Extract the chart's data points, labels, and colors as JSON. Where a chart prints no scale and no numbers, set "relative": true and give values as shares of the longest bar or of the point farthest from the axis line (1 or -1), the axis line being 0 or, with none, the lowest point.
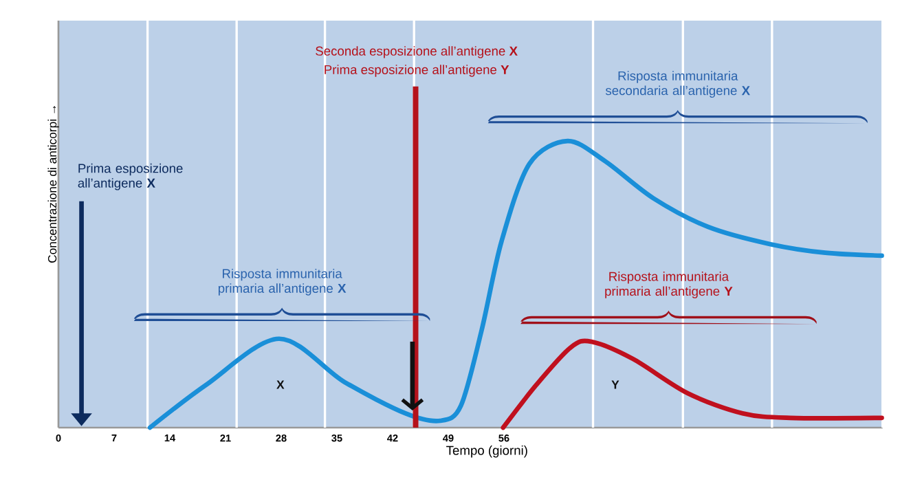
{
  "chart_data": {
    "type": "line",
    "relative": true,
    "xlabel": "Tempo (giorni)",
    "ylabel": "Concentrazione di anticorpi →",
    "xlim": [
      0,
      103.6
    ],
    "xticks": [
      0,
      7,
      14,
      21,
      28,
      35,
      42,
      49,
      56,
      {
        "value": 11.2,
        "label": null
      },
      {
        "value": 22.4,
        "label": null
      },
      {
        "value": 33.5,
        "label": null
      },
      {
        "value": 44.7,
        "label": null
      },
      {
        "value": 67.2,
        "label": null
      },
      {
        "value": 78.5,
        "label": null
      },
      {
        "value": 89.7,
        "label": null
      },
      {
        "value": 103.6,
        "label": null
      }
    ],
    "grid": "x",
    "series": [
      {
        "color": "#1a8fd8",
        "x": [
          11.5,
          18.6,
          27.7,
          35.9,
          43.6,
          48.0,
          50.6,
          53.2,
          55.7,
          59.2,
          64.0,
          68.7,
          74.8,
          81.7,
          89.5,
          96.4,
          103.5
        ],
        "values": [
          0,
          0.15,
          0.31,
          0.16,
          0.05,
          0.024,
          0.077,
          0.34,
          0.65,
          0.92,
          1,
          0.93,
          0.8,
          0.7,
          0.64,
          0.61,
          0.6
        ]
      },
      {
        "color": "#c0101e",
        "x": [
          55.9,
          60.1,
          64.4,
          67.0,
          72.2,
          79.1,
          86.0,
          92.0,
          103.5
        ],
        "values": [
          0,
          0.15,
          0.28,
          0.3,
          0.24,
          0.12,
          0.05,
          0.034,
          0.034
        ]
      }
    ],
    "ref_lines": [
      {
        "axis": "x",
        "value": 44.9,
        "label": "Seconda esposizione all’antigene **X**",
        "color": "#b5121b"
      }
    ],
    "annotations": [
      "Prima esposizione all’antigene **X**",
      "Prima esposizione all’antigene **Y**",
      "Risposta immunitaria primaria all’antigene **X**",
      "Risposta immunitaria secondaria all’antigene **X**",
      "Risposta immunitaria primaria all’antigene **Y**",
      "X",
      "Y"
    ]
  }
}
